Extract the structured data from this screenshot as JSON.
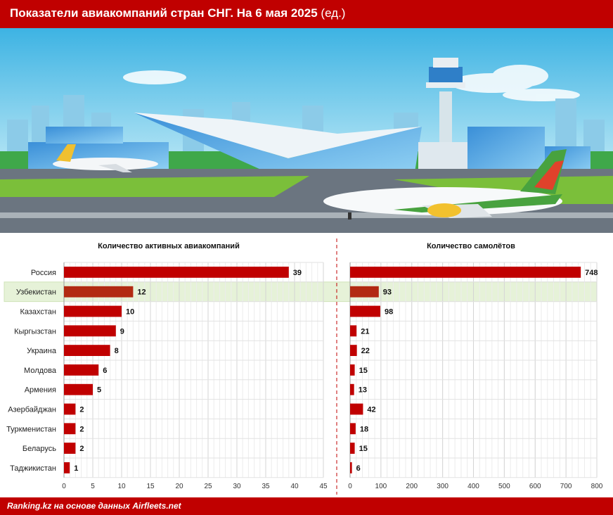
{
  "header": {
    "title": "Показатели авиакомпаний стран СНГ. На 6 мая 2025",
    "unit": "(ед.)"
  },
  "footer": {
    "source": "Ranking.kz на основе данных Airfleets.net"
  },
  "colors": {
    "accent": "#c00000",
    "bar": "#c00000",
    "bar_highlight": "#b22a12",
    "highlight_band": "#e6f2d8"
  },
  "chart_data": [
    {
      "type": "bar",
      "orientation": "horizontal",
      "title": "Количество активных авиакомпаний",
      "categories": [
        "Россия",
        "Узбекистан",
        "Казахстан",
        "Кыргызстан",
        "Украина",
        "Молдова",
        "Армения",
        "Азербайджан",
        "Туркменистан",
        "Беларусь",
        "Таджикистан"
      ],
      "values": [
        39,
        12,
        10,
        9,
        8,
        6,
        5,
        2,
        2,
        2,
        1
      ],
      "highlight": "Узбекистан",
      "xlim": [
        0,
        45
      ],
      "xticks": [
        0,
        5,
        10,
        15,
        20,
        25,
        30,
        35,
        40,
        45
      ],
      "grid": true
    },
    {
      "type": "bar",
      "orientation": "horizontal",
      "title": "Количество самолётов",
      "categories": [
        "Россия",
        "Узбекистан",
        "Казахстан",
        "Кыргызстан",
        "Украина",
        "Молдова",
        "Армения",
        "Азербайджан",
        "Туркменистан",
        "Беларусь",
        "Таджикистан"
      ],
      "values": [
        748,
        93,
        98,
        21,
        22,
        15,
        13,
        42,
        18,
        15,
        6
      ],
      "highlight": "Узбекистан",
      "xlim": [
        0,
        800
      ],
      "xticks": [
        0,
        100,
        200,
        300,
        400,
        500,
        600,
        700,
        800
      ],
      "grid": true
    }
  ]
}
